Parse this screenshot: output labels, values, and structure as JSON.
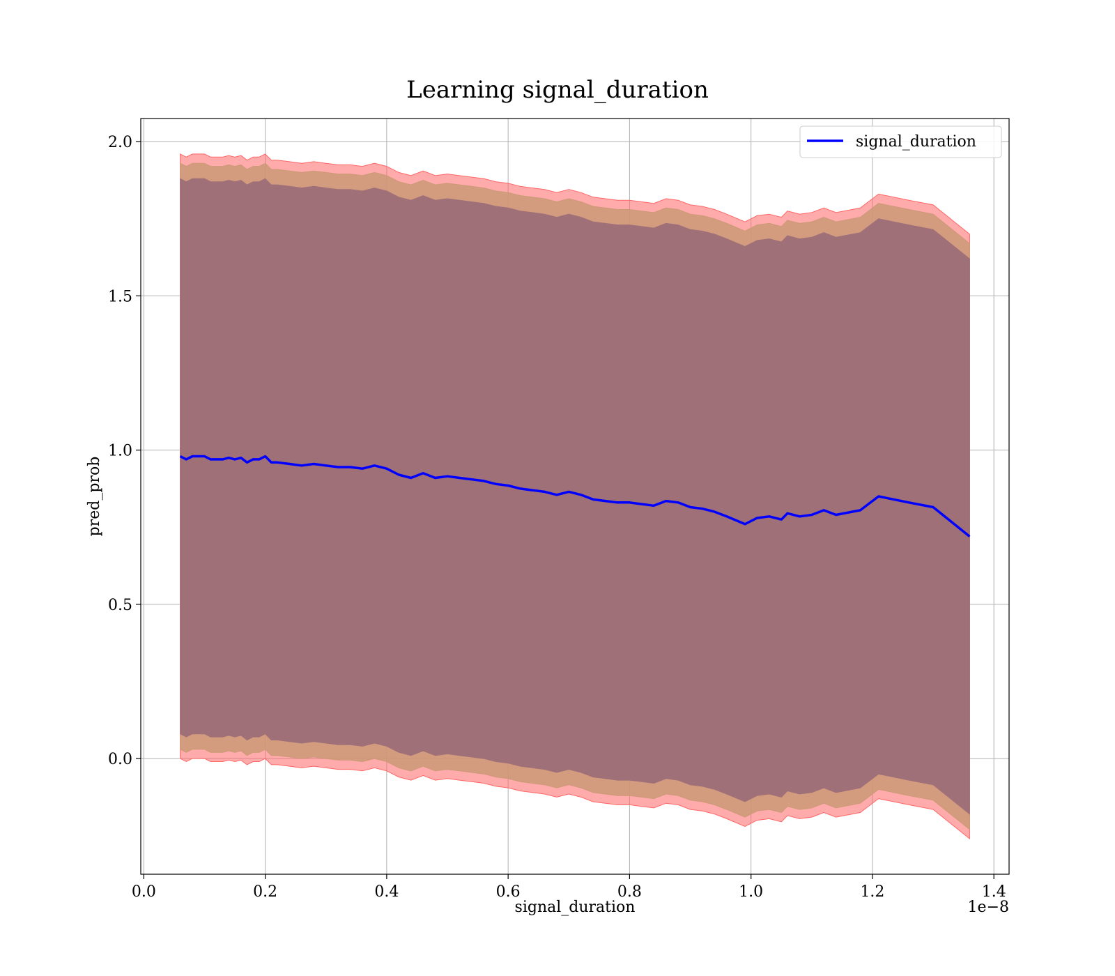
{
  "chart_data": {
    "type": "line",
    "title": "Learning signal_duration",
    "xlabel": "signal_duration",
    "ylabel": "pred_prob",
    "x_offset_label": "1e−8",
    "xlim": [
      -0.005,
      1.425
    ],
    "ylim": [
      -0.375,
      2.075
    ],
    "x_ticks": [
      0.0,
      0.2,
      0.4,
      0.6,
      0.8,
      1.0,
      1.2,
      1.4
    ],
    "x_tick_labels": [
      "0.0",
      "0.2",
      "0.4",
      "0.6",
      "0.8",
      "1.0",
      "1.2",
      "1.4"
    ],
    "y_ticks": [
      0.0,
      0.5,
      1.0,
      1.5,
      2.0
    ],
    "y_tick_labels": [
      "0.0",
      "0.5",
      "1.0",
      "1.5",
      "2.0"
    ],
    "grid": true,
    "legend_position": "top-right",
    "colors": {
      "line": "#0000ff",
      "outer_band": "#ff6666",
      "mid_band": "#cc9977",
      "inner_band": "#a07078",
      "grid": "#b0b0b0"
    },
    "x": [
      0.06,
      0.07,
      0.08,
      0.09,
      0.1,
      0.11,
      0.12,
      0.13,
      0.14,
      0.15,
      0.16,
      0.17,
      0.18,
      0.19,
      0.2,
      0.21,
      0.22,
      0.24,
      0.26,
      0.28,
      0.3,
      0.32,
      0.34,
      0.36,
      0.38,
      0.4,
      0.42,
      0.44,
      0.46,
      0.48,
      0.5,
      0.52,
      0.54,
      0.56,
      0.58,
      0.6,
      0.62,
      0.64,
      0.66,
      0.68,
      0.7,
      0.72,
      0.74,
      0.76,
      0.78,
      0.8,
      0.82,
      0.84,
      0.86,
      0.88,
      0.9,
      0.92,
      0.94,
      0.96,
      0.99,
      1.01,
      1.03,
      1.05,
      1.06,
      1.08,
      1.1,
      1.12,
      1.14,
      1.18,
      1.21,
      1.26,
      1.3,
      1.36
    ],
    "series": [
      {
        "name": "signal_duration",
        "values": [
          0.98,
          0.97,
          0.98,
          0.98,
          0.98,
          0.97,
          0.97,
          0.97,
          0.975,
          0.97,
          0.975,
          0.96,
          0.97,
          0.97,
          0.98,
          0.96,
          0.96,
          0.955,
          0.95,
          0.955,
          0.95,
          0.945,
          0.945,
          0.94,
          0.95,
          0.94,
          0.92,
          0.91,
          0.925,
          0.91,
          0.915,
          0.91,
          0.905,
          0.9,
          0.89,
          0.885,
          0.875,
          0.87,
          0.865,
          0.855,
          0.865,
          0.855,
          0.84,
          0.835,
          0.83,
          0.83,
          0.825,
          0.82,
          0.835,
          0.83,
          0.815,
          0.81,
          0.8,
          0.785,
          0.76,
          0.78,
          0.785,
          0.775,
          0.795,
          0.785,
          0.79,
          0.805,
          0.79,
          0.805,
          0.85,
          0.83,
          0.815,
          0.72
        ]
      }
    ],
    "bands": [
      {
        "half_width": 0.98
      },
      {
        "half_width": 0.95
      },
      {
        "half_width": 0.9
      }
    ]
  }
}
